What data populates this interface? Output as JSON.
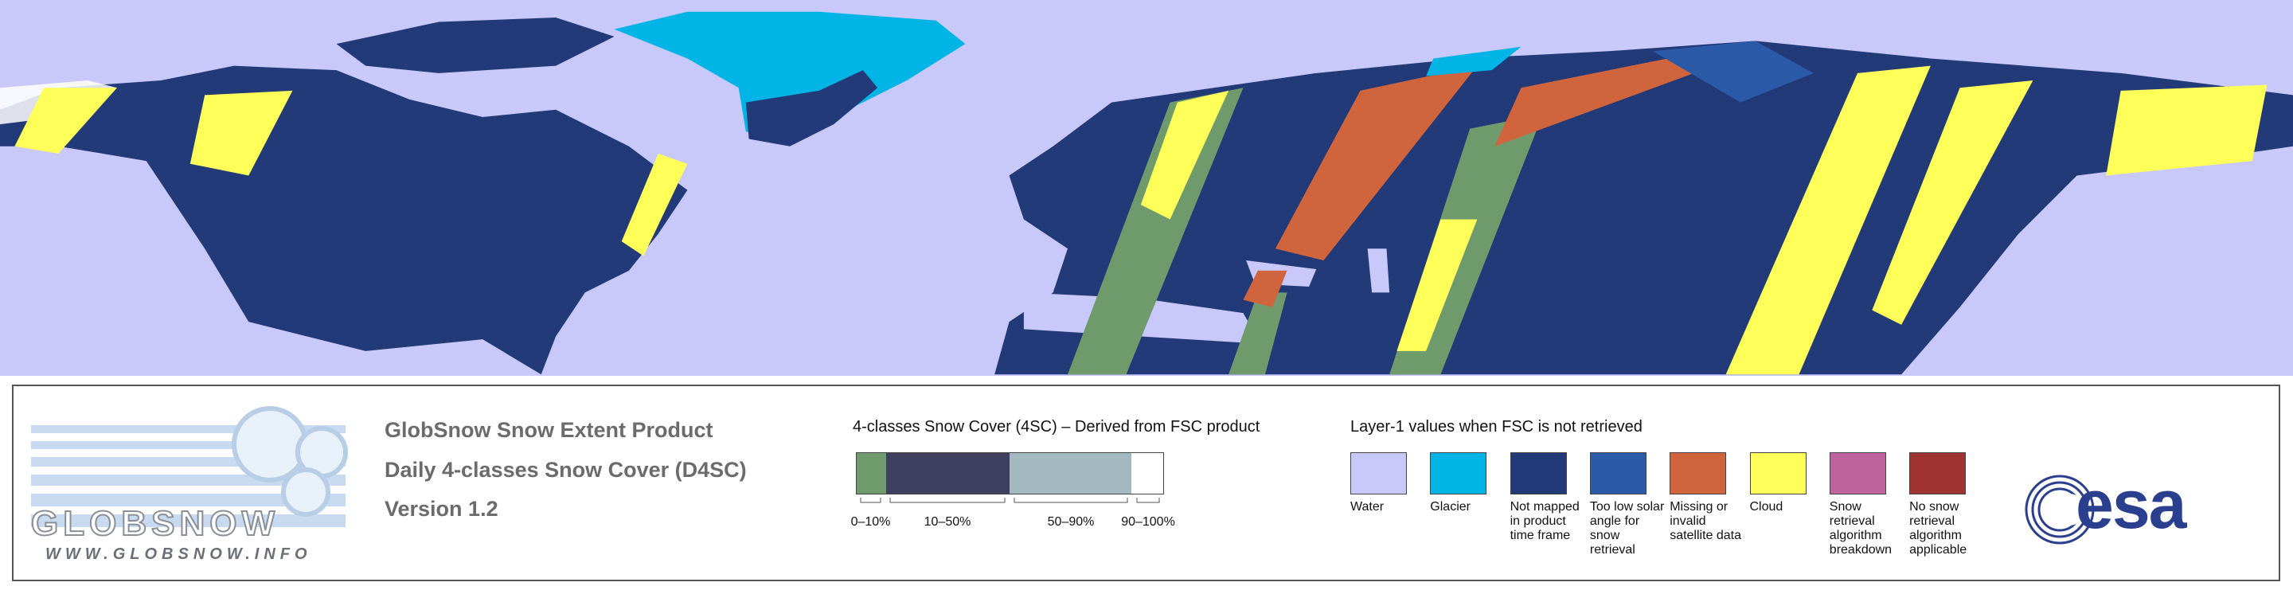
{
  "header": {
    "line1": "GlobSnow Snow Extent Product",
    "line2": "Daily 4-classes Snow Cover (D4SC)",
    "line3": "Version 1.2"
  },
  "logo": {
    "word": "GLOBSNOW",
    "url": "WWW.GLOBSNOW.INFO",
    "agency": "esa"
  },
  "snow_cover_legend": {
    "title": "4-classes Snow Cover (4SC) – Derived from FSC product",
    "classes": [
      {
        "label": "0–10%",
        "color": "#6f9a6c"
      },
      {
        "label": "10–50%",
        "color": "#3f3f5f"
      },
      {
        "label": "50–90%",
        "color": "#a2babf"
      },
      {
        "label": "90–100%",
        "color": "#ffffff"
      }
    ]
  },
  "layer1_legend": {
    "title": "Layer-1 values when FSC is not retrieved",
    "items": [
      {
        "label": "Water",
        "color": "#c8c8fa"
      },
      {
        "label": "Glacier",
        "color": "#00b4e6"
      },
      {
        "label": "Not mapped in product time frame",
        "color": "#233a78"
      },
      {
        "label": "Too low solar angle for snow retrieval",
        "color": "#2a5aa8"
      },
      {
        "label": "Missing or invalid satellite data",
        "color": "#d0643c"
      },
      {
        "label": "Cloud",
        "color": "#ffff5a"
      },
      {
        "label": "Snow retrieval algorithm breakdown",
        "color": "#c064a0"
      },
      {
        "label": "No snow retrieval algorithm applicable",
        "color": "#a03232"
      }
    ]
  }
}
